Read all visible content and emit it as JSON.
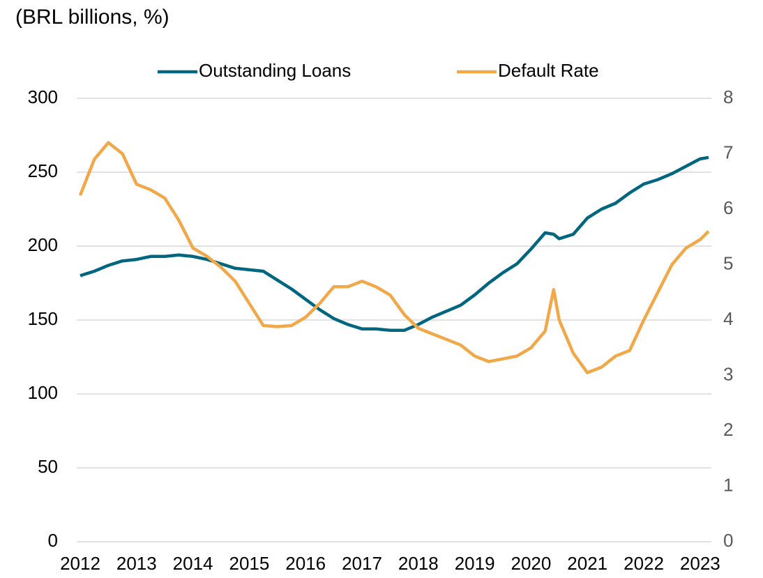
{
  "chart_data": {
    "type": "line",
    "subtitle": "(BRL billions, %)",
    "x": [
      2012,
      2012.25,
      2012.5,
      2012.75,
      2013,
      2013.25,
      2013.5,
      2013.75,
      2014,
      2014.25,
      2014.5,
      2014.75,
      2015,
      2015.25,
      2015.5,
      2015.75,
      2016,
      2016.25,
      2016.5,
      2016.75,
      2017,
      2017.25,
      2017.5,
      2017.75,
      2018,
      2018.25,
      2018.5,
      2018.75,
      2019,
      2019.25,
      2019.5,
      2019.75,
      2020,
      2020.25,
      2020.4,
      2020.5,
      2020.75,
      2021,
      2021.25,
      2021.5,
      2021.75,
      2022,
      2022.25,
      2022.5,
      2022.75,
      2023,
      2023.15
    ],
    "series": [
      {
        "name": "Outstanding Loans",
        "color": "#00667f",
        "values": [
          180,
          183,
          187,
          190,
          191,
          193,
          193,
          194,
          193,
          191,
          188,
          185,
          184,
          183,
          177,
          171,
          164,
          157,
          151,
          147,
          144,
          144,
          143,
          143,
          147,
          152,
          156,
          160,
          167,
          175,
          182,
          188,
          198,
          209,
          208,
          205,
          208,
          219,
          225,
          229,
          236,
          242,
          245,
          249,
          254,
          259,
          260
        ]
      },
      {
        "name": "Default Rate",
        "color": "#f0a848",
        "axis": "y2",
        "values": [
          6.25,
          6.9,
          7.2,
          7.0,
          6.45,
          6.35,
          6.2,
          5.8,
          5.3,
          5.15,
          4.95,
          4.7,
          4.3,
          3.9,
          3.88,
          3.9,
          4.05,
          4.3,
          4.6,
          4.6,
          4.7,
          4.6,
          4.45,
          4.1,
          3.85,
          3.75,
          3.65,
          3.55,
          3.35,
          3.25,
          3.3,
          3.35,
          3.5,
          3.8,
          4.55,
          4.0,
          3.4,
          3.05,
          3.15,
          3.35,
          3.45,
          4.0,
          4.5,
          5.0,
          5.3,
          5.45,
          5.6
        ]
      }
    ],
    "xlim": [
      2012,
      2023.2
    ],
    "xticks": [
      2012,
      2013,
      2014,
      2015,
      2016,
      2017,
      2018,
      2019,
      2020,
      2021,
      2022,
      2023
    ],
    "ylim": [
      0,
      300
    ],
    "yticks": [
      0,
      50,
      100,
      150,
      200,
      250,
      300
    ],
    "y2lim": [
      0,
      8
    ],
    "y2ticks": [
      0,
      1,
      2,
      3,
      4,
      5,
      6,
      7,
      8
    ],
    "grid": true,
    "legend": "top"
  }
}
